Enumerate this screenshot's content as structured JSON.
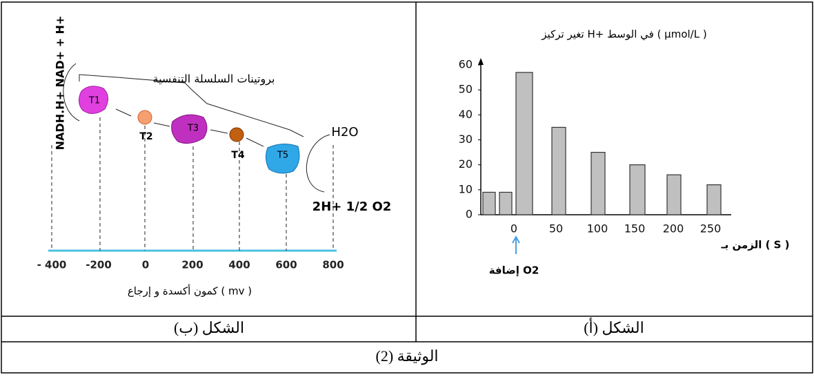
{
  "chart_data": {
    "type": "bar",
    "title": "تغير تركيز H+ في الوسط ( µmol/L )",
    "x_label": "الزمن بـ ( S )",
    "annotation": "إضافة O2",
    "categories": [
      null,
      null,
      "0",
      "50",
      "100",
      "150",
      "200",
      "250"
    ],
    "values": [
      9,
      9,
      57,
      35,
      25,
      20,
      16,
      12
    ],
    "color": "#c0c0c0",
    "ylim": [
      0,
      60
    ],
    "yticks": [
      0,
      10,
      20,
      30,
      40,
      50,
      60
    ]
  },
  "diagram": {
    "title": "بروتينات السلسلة التنفسية",
    "axis_label": "كمون أكسدة و إرجاع ( mv )",
    "axis_ticks": [
      "- 400",
      "-200",
      "0",
      "200",
      "400",
      "600",
      "800"
    ],
    "proteins": [
      "T1",
      "T2",
      "T3",
      "T4",
      "T5"
    ],
    "left_label": "NADH.H+ NAD+ + H+",
    "product": "H2O",
    "reactants": "2H+ 1/2 O2"
  },
  "captions": {
    "left": "الشكل (ب)",
    "right": "الشكل (أ)",
    "document": "الوثيقة (2)"
  }
}
